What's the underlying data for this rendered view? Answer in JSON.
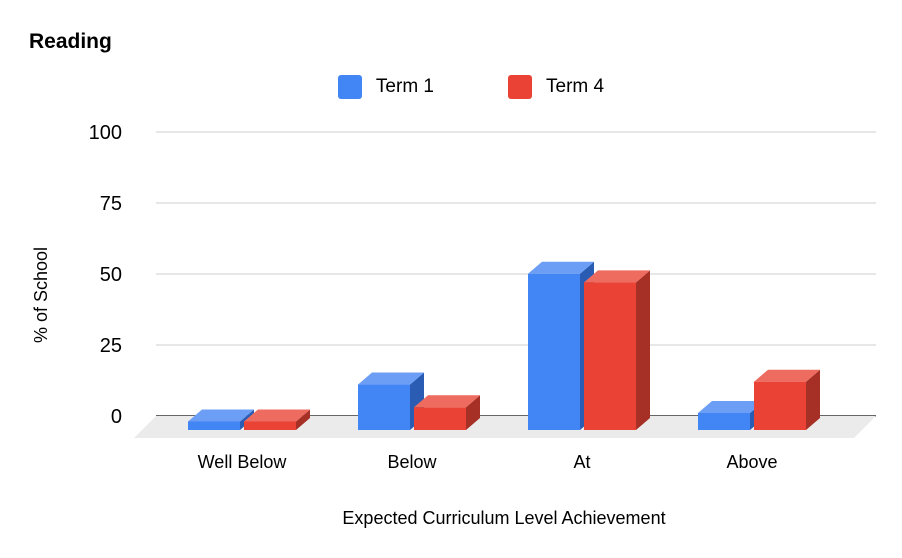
{
  "chart_data": {
    "type": "bar",
    "title": "Reading",
    "xlabel": "Expected Curriculum Level Achievement",
    "ylabel": "% of School",
    "categories": [
      "Well Below",
      "Below",
      "At",
      "Above"
    ],
    "series": [
      {
        "name": "Term 1",
        "values": [
          3,
          16,
          55,
          6
        ],
        "color": "#4285f4"
      },
      {
        "name": "Term 4",
        "values": [
          3,
          8,
          52,
          17
        ],
        "color": "#ea4335"
      }
    ],
    "ylim": [
      0,
      100
    ],
    "yticks": [
      "0",
      "25",
      "50",
      "75",
      "100"
    ],
    "grid": true,
    "legend": "top"
  }
}
